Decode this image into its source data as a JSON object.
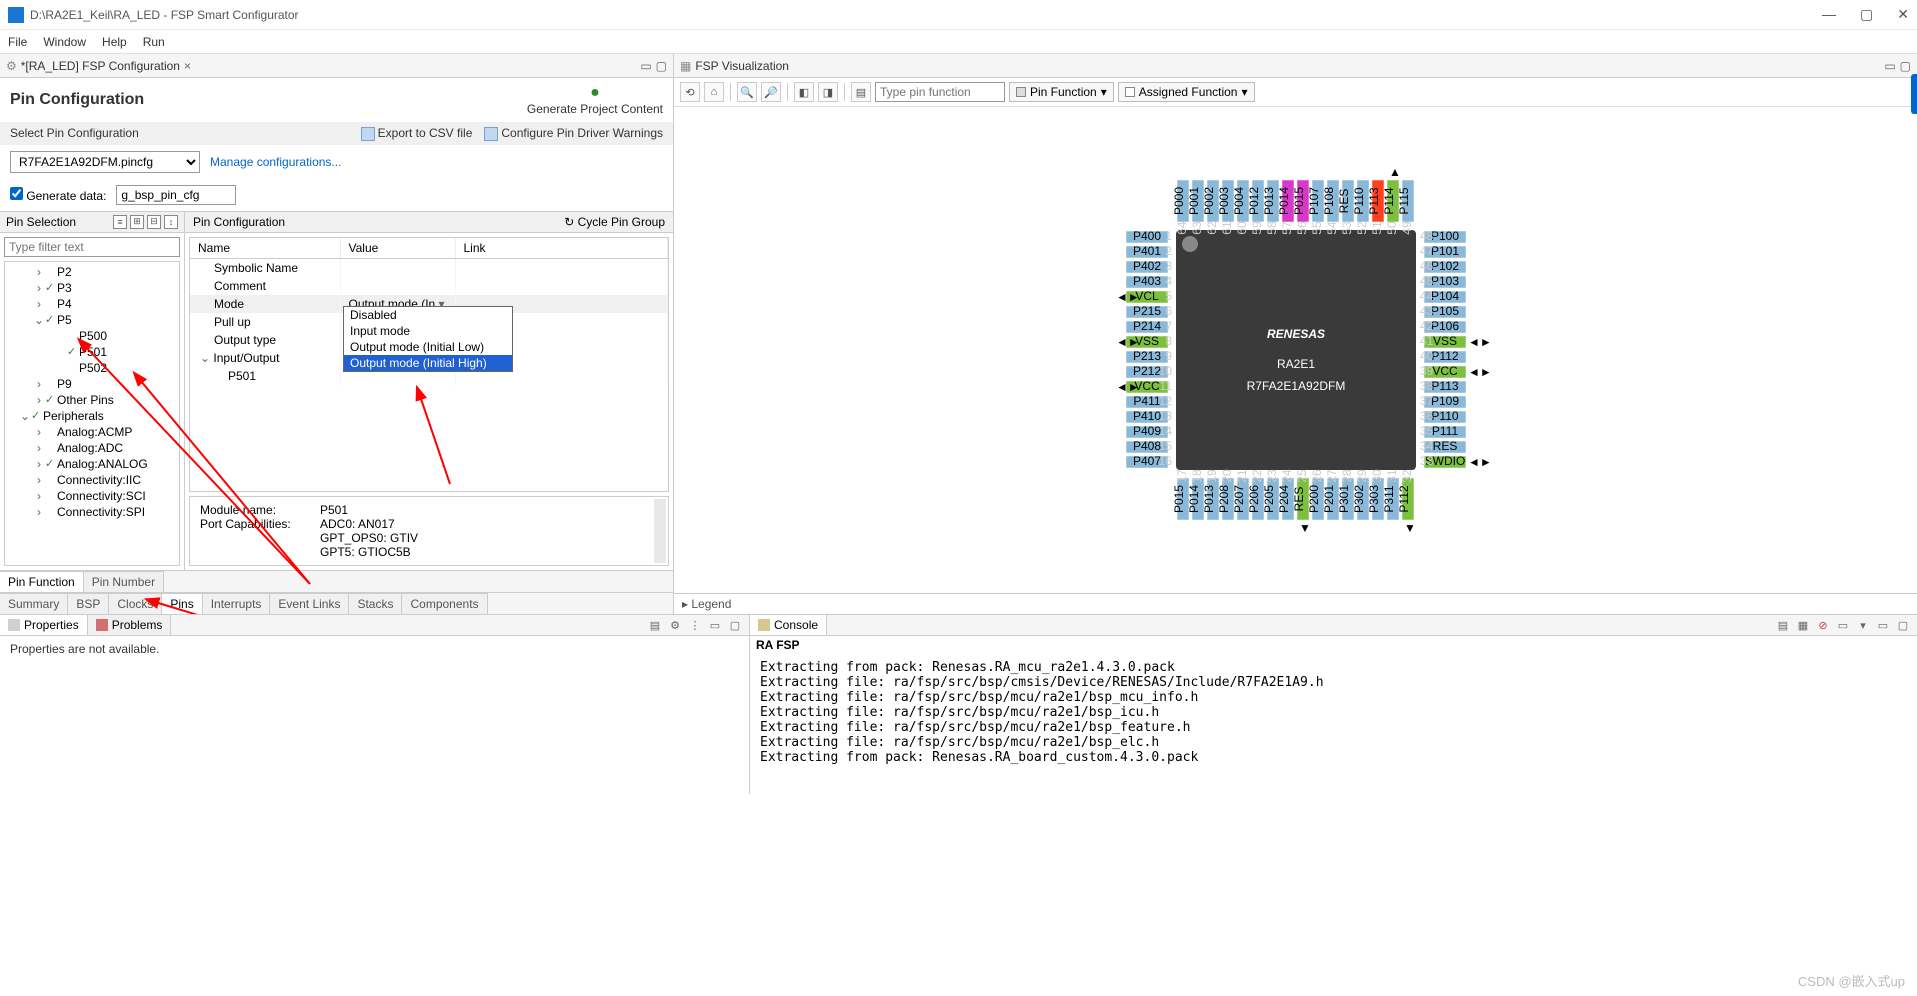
{
  "window": {
    "title": "D:\\RA2E1_Keil\\RA_LED - FSP Smart Configurator",
    "controls": {
      "min": "—",
      "max": "▢",
      "close": "✕"
    }
  },
  "menu": {
    "file": "File",
    "window": "Window",
    "help": "Help",
    "run": "Run"
  },
  "left": {
    "tab_label": "*[RA_LED] FSP Configuration",
    "title": "Pin Configuration",
    "generate": "Generate Project Content",
    "select_section": "Select Pin Configuration",
    "export_csv": "Export to CSV file",
    "config_warnings": "Configure Pin Driver Warnings",
    "pincfg_value": "R7FA2E1A92DFM.pincfg",
    "manage_link": "Manage configurations...",
    "gen_data_label": "Generate data:",
    "gen_data_value": "g_bsp_pin_cfg",
    "pin_selection": {
      "title": "Pin Selection",
      "filter_placeholder": "Type filter text",
      "items": [
        {
          "label": "P2",
          "exp": "›",
          "chk": false,
          "ind": 2
        },
        {
          "label": "P3",
          "exp": "›",
          "chk": true,
          "ind": 2
        },
        {
          "label": "P4",
          "exp": "›",
          "chk": false,
          "ind": 2
        },
        {
          "label": "P5",
          "exp": "⌄",
          "chk": true,
          "ind": 2
        },
        {
          "label": "P500",
          "exp": "",
          "chk": false,
          "ind": 3
        },
        {
          "label": "P501",
          "exp": "",
          "chk": true,
          "ind": 3
        },
        {
          "label": "P502",
          "exp": "",
          "chk": false,
          "ind": 3
        },
        {
          "label": "P9",
          "exp": "›",
          "chk": false,
          "ind": 2
        },
        {
          "label": "Other Pins",
          "exp": "›",
          "chk": true,
          "ind": 2
        },
        {
          "label": "Peripherals",
          "exp": "⌄",
          "chk": true,
          "ind": 1
        },
        {
          "label": "Analog:ACMP",
          "exp": "›",
          "chk": false,
          "ind": 2
        },
        {
          "label": "Analog:ADC",
          "exp": "›",
          "chk": false,
          "ind": 2
        },
        {
          "label": "Analog:ANALOG",
          "exp": "›",
          "chk": true,
          "ind": 2
        },
        {
          "label": "Connectivity:IIC",
          "exp": "›",
          "chk": false,
          "ind": 2
        },
        {
          "label": "Connectivity:SCI",
          "exp": "›",
          "chk": false,
          "ind": 2
        },
        {
          "label": "Connectivity:SPI",
          "exp": "›",
          "chk": false,
          "ind": 2
        }
      ]
    },
    "pin_config": {
      "title": "Pin Configuration",
      "cycle": "Cycle Pin Group",
      "cols": {
        "name": "Name",
        "value": "Value",
        "link": "Link"
      },
      "rows": [
        {
          "name": "Symbolic Name",
          "value": "",
          "ind": 1
        },
        {
          "name": "Comment",
          "value": "",
          "ind": 1
        },
        {
          "name": "Mode",
          "value": "Output mode (In",
          "sel": true,
          "dd": true,
          "ind": 1
        },
        {
          "name": "Pull up",
          "value": "",
          "ind": 1
        },
        {
          "name": "Output type",
          "value": "",
          "ind": 1
        },
        {
          "name": "Input/Output",
          "value": "",
          "exp": "⌄",
          "ind": 0
        },
        {
          "name": "P501",
          "value": "",
          "ind": 2
        }
      ],
      "dropdown": [
        "Disabled",
        "Input mode",
        "Output mode (Initial Low)",
        "Output mode (Initial High)"
      ],
      "dropdown_hl": 3,
      "module": {
        "name_label": "Module name:",
        "name_value": "P501",
        "caps_label": "Port Capabilities:",
        "caps": [
          "ADC0: AN017",
          "GPT_OPS0: GTIV",
          "GPT5: GTIOC5B"
        ]
      }
    },
    "pin_tabs": {
      "func": "Pin Function",
      "num": "Pin Number"
    },
    "bottom_tabs": [
      "Summary",
      "BSP",
      "Clocks",
      "Pins",
      "Interrupts",
      "Event Links",
      "Stacks",
      "Components"
    ],
    "bottom_tabs_active": 3
  },
  "vis": {
    "tab_label": "FSP Visualization",
    "search_placeholder": "Type pin function",
    "dd1": "Pin Function",
    "dd2": "Assigned Function",
    "legend": "Legend",
    "chip": {
      "brand": "RENESAS",
      "family": "RA2E1",
      "part": "R7FA2E1A92DFM",
      "color_pin": "#8ab8d8",
      "color_pin_active": "#7cc040",
      "color_pin_special": "#d838c8",
      "color_pin_hot": "#ff4020",
      "color_body": "#3a3a3a",
      "left_pins": [
        "P400",
        "P401",
        "P402",
        "P403",
        "VCL",
        "P215",
        "P214",
        "VSS",
        "P213",
        "P212",
        "VCC",
        "P411",
        "P410",
        "P409",
        "P408",
        "P407"
      ],
      "left_green": [
        4,
        7,
        10
      ],
      "left_nums": [
        1,
        2,
        3,
        4,
        5,
        6,
        7,
        8,
        9,
        10,
        11,
        12,
        13,
        14,
        15,
        16
      ],
      "right_pins": [
        "P100",
        "P101",
        "P102",
        "P103",
        "P104",
        "P105",
        "P106",
        "VSS",
        "P112",
        "VCC",
        "P113",
        "P109",
        "P110",
        "P111",
        "RES",
        "SWDIO"
      ],
      "right_green": [
        7,
        9,
        15
      ],
      "right_nums": [
        48,
        47,
        46,
        45,
        44,
        43,
        42,
        41,
        40,
        39,
        38,
        37,
        36,
        35,
        34,
        33
      ],
      "top_pins": [
        "P000",
        "P001",
        "P002",
        "P003",
        "P004",
        "P012",
        "P013",
        "P014",
        "P015",
        "P107",
        "P108",
        "RES",
        "P110",
        "P113",
        "P114",
        "P115"
      ],
      "top_nums": [
        64,
        63,
        62,
        61,
        60,
        59,
        58,
        57,
        56,
        55,
        54,
        53,
        52,
        51,
        50,
        49
      ],
      "top_special": [
        7,
        8
      ],
      "top_green": [
        14
      ],
      "top_hot": [
        13
      ],
      "bot_pins": [
        "P015",
        "P014",
        "P013",
        "P208",
        "P207",
        "P206",
        "P205",
        "P204",
        "RES",
        "P200",
        "P201",
        "P301",
        "P302",
        "P303",
        "P311",
        "P112"
      ],
      "bot_nums": [
        17,
        18,
        19,
        20,
        21,
        22,
        23,
        24,
        25,
        26,
        27,
        28,
        29,
        30,
        31,
        32
      ],
      "bot_green": [
        8,
        15
      ]
    }
  },
  "props": {
    "tab1": "Properties",
    "tab2": "Problems",
    "empty": "Properties are not available."
  },
  "console": {
    "tab": "Console",
    "title": "RA FSP",
    "lines": [
      "Extracting from pack: Renesas.RA_mcu_ra2e1.4.3.0.pack",
      "Extracting file: ra/fsp/src/bsp/cmsis/Device/RENESAS/Include/R7FA2E1A9.h",
      "Extracting file: ra/fsp/src/bsp/mcu/ra2e1/bsp_mcu_info.h",
      "Extracting file: ra/fsp/src/bsp/mcu/ra2e1/bsp_icu.h",
      "Extracting file: ra/fsp/src/bsp/mcu/ra2e1/bsp_feature.h",
      "Extracting file: ra/fsp/src/bsp/mcu/ra2e1/bsp_elc.h",
      "Extracting from pack: Renesas.RA_board_custom.4.3.0.pack"
    ]
  },
  "watermark": "CSDN @嵌入式up",
  "arrows": {
    "color": "#ff0000"
  }
}
